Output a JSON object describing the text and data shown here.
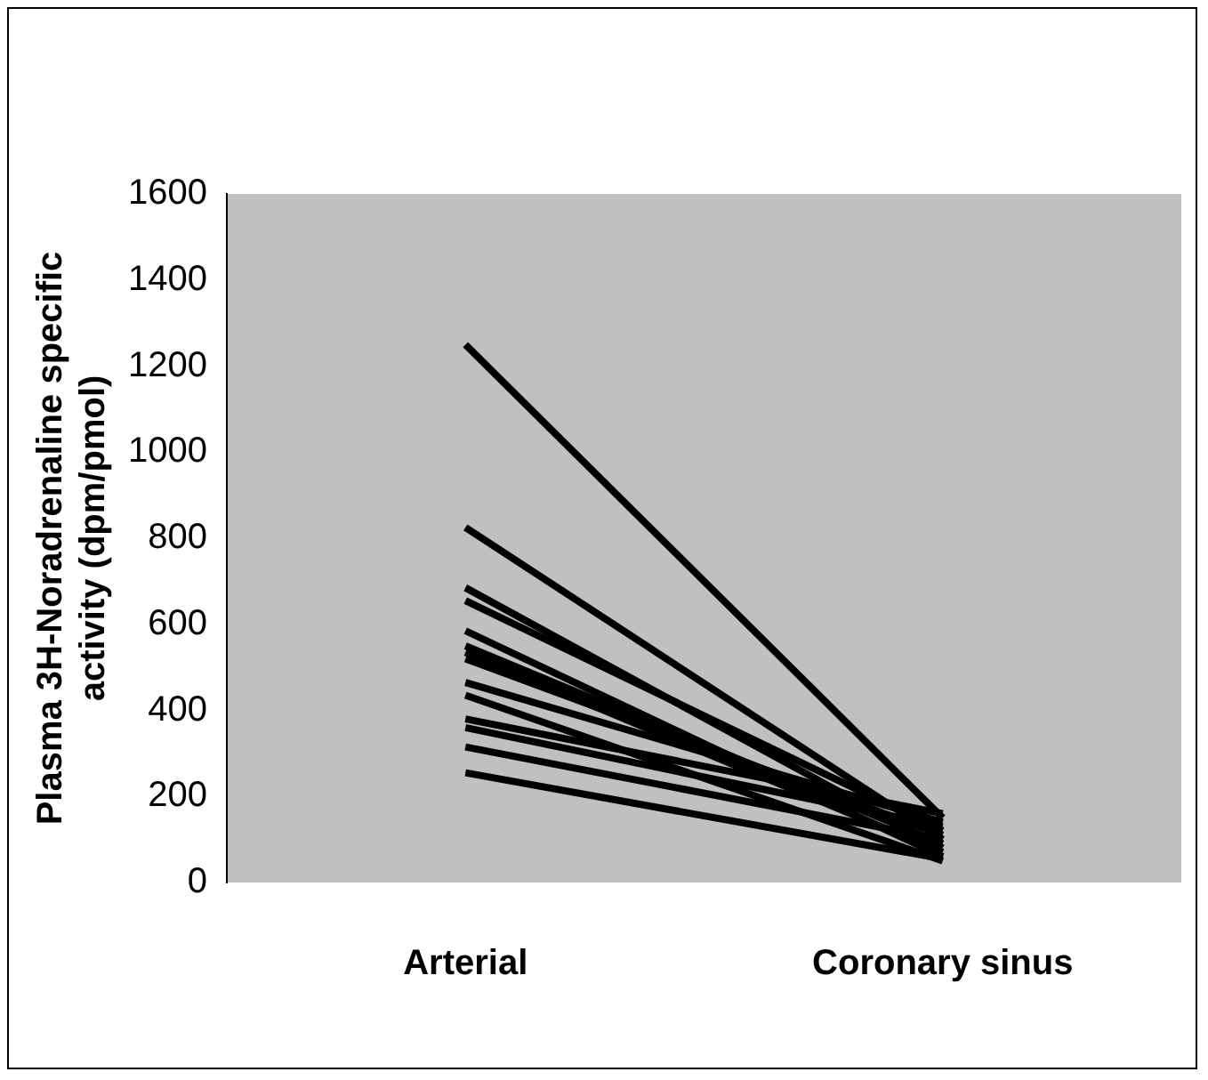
{
  "chart_data": {
    "type": "line",
    "ylabel": "Plasma 3H-Noradrenaline specific activity (dpm/pmol)",
    "categories": [
      "Arterial",
      "Coronary sinus"
    ],
    "ylim": [
      0,
      1600
    ],
    "yticks": [
      0,
      200,
      400,
      600,
      800,
      1000,
      1200,
      1400,
      1600
    ],
    "grid": false,
    "legend": false,
    "marker": "none",
    "line_style": "solid",
    "series": [
      {
        "color": "#000000",
        "values": [
          1250,
          150
        ]
      },
      {
        "color": "#000000",
        "values": [
          825,
          100
        ]
      },
      {
        "color": "#000000",
        "values": [
          685,
          80
        ]
      },
      {
        "color": "#000000",
        "values": [
          655,
          120
        ]
      },
      {
        "color": "#000000",
        "values": [
          585,
          60
        ]
      },
      {
        "color": "#000000",
        "values": [
          550,
          90
        ]
      },
      {
        "color": "#000000",
        "values": [
          535,
          70
        ]
      },
      {
        "color": "#000000",
        "values": [
          520,
          110
        ]
      },
      {
        "color": "#000000",
        "values": [
          465,
          140
        ]
      },
      {
        "color": "#000000",
        "values": [
          435,
          50
        ]
      },
      {
        "color": "#000000",
        "values": [
          380,
          160
        ]
      },
      {
        "color": "#000000",
        "values": [
          360,
          130
        ]
      },
      {
        "color": "#000000",
        "values": [
          315,
          100
        ]
      },
      {
        "color": "#000000",
        "values": [
          255,
          55
        ]
      }
    ]
  }
}
